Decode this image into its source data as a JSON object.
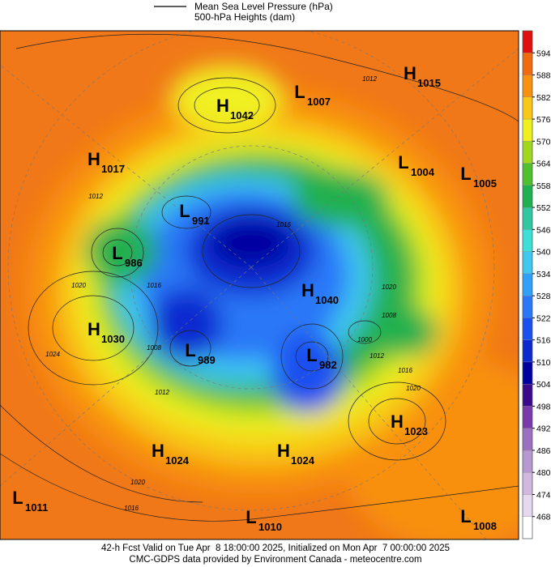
{
  "legend": {
    "line_label": "Mean Sea Level Pressure (hPa)",
    "fill_label": "500-hPa Heights (dam)"
  },
  "colorbar": {
    "ticks": [
      468,
      474,
      480,
      486,
      492,
      498,
      504,
      510,
      516,
      522,
      528,
      534,
      540,
      546,
      552,
      558,
      564,
      570,
      576,
      582,
      588,
      594
    ],
    "colors": [
      "#ffffff",
      "#e6d8ee",
      "#d0b8e0",
      "#b898d0",
      "#9c70c0",
      "#7a3aa8",
      "#3a0a8a",
      "#0000a0",
      "#0a2ad0",
      "#1a50f0",
      "#2a78f8",
      "#30a0f8",
      "#40c8f0",
      "#3ce0d8",
      "#30c8a0",
      "#20b050",
      "#50c030",
      "#a0d820",
      "#f0f020",
      "#f8c818",
      "#f89010",
      "#f06a10",
      "#e01010"
    ]
  },
  "centers": [
    {
      "kind": "H",
      "value": 1042
    },
    {
      "kind": "L",
      "value": 1007
    },
    {
      "kind": "H",
      "value": 1015
    },
    {
      "kind": "H",
      "value": 1017
    },
    {
      "kind": "L",
      "value": 1004
    },
    {
      "kind": "L",
      "value": 1005
    },
    {
      "kind": "L",
      "value": 991
    },
    {
      "kind": "L",
      "value": 986
    },
    {
      "kind": "H",
      "value": 1040
    },
    {
      "kind": "H",
      "value": 1030
    },
    {
      "kind": "L",
      "value": 989
    },
    {
      "kind": "L",
      "value": 982
    },
    {
      "kind": "H",
      "value": 1023
    },
    {
      "kind": "H",
      "value": 1024
    },
    {
      "kind": "H",
      "value": 1024
    },
    {
      "kind": "L",
      "value": 1011
    },
    {
      "kind": "L",
      "value": 1010
    },
    {
      "kind": "L",
      "value": 1008
    }
  ],
  "isobar_labels": [
    1012,
    1012,
    1016,
    1020,
    1024,
    1016,
    1008,
    1012,
    1020,
    1016,
    1000,
    1012,
    1016,
    1020,
    1008,
    1020
  ],
  "footer": {
    "line1": "42-h Fcst Valid on Tue Apr  8 18:00:00 2025, Initialized on Mon Apr  7 00:00:00 2025",
    "line2": "CMC-GDPS data provided by Environment Canada - meteocentre.com"
  }
}
